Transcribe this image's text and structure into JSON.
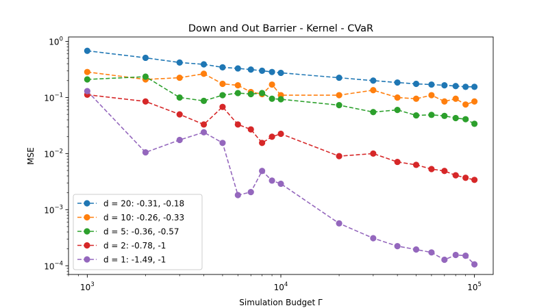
{
  "chart_data": {
    "type": "line",
    "title": "Down and Out Barrier - Kernel - CVaR",
    "xlabel": "Simulation Budget Γ",
    "ylabel": "MSE",
    "xscale": "log",
    "yscale": "log",
    "xlim": [
      800,
      125000
    ],
    "ylim": [
      7e-05,
      1.2
    ],
    "grid": false,
    "legend_position": "lower-left",
    "x_ticks": [
      {
        "value": 1000,
        "base": "10",
        "exp": "3"
      },
      {
        "value": 10000,
        "base": "10",
        "exp": "4"
      },
      {
        "value": 100000,
        "base": "10",
        "exp": "5"
      }
    ],
    "y_ticks": [
      {
        "value": 1,
        "base": "10",
        "exp": "0"
      },
      {
        "value": 0.1,
        "base": "10",
        "exp": "−1"
      },
      {
        "value": 0.01,
        "base": "10",
        "exp": "−2"
      },
      {
        "value": 0.001,
        "base": "10",
        "exp": "−3"
      },
      {
        "value": 0.0001,
        "base": "10",
        "exp": "−4"
      }
    ],
    "x": [
      1000,
      2000,
      3000,
      4000,
      5000,
      6000,
      7000,
      8000,
      9000,
      10000,
      20000,
      30000,
      40000,
      50000,
      60000,
      70000,
      80000,
      90000,
      100000
    ],
    "series": [
      {
        "name": "d = 20: -0.31, -0.18",
        "color": "#1f77b4",
        "values": [
          0.68,
          0.51,
          0.42,
          0.39,
          0.345,
          0.33,
          0.315,
          0.3,
          0.285,
          0.275,
          0.225,
          0.2,
          0.185,
          0.175,
          0.17,
          0.165,
          0.16,
          0.155,
          0.155
        ]
      },
      {
        "name": "d = 10: -0.26, -0.33",
        "color": "#ff7f0e",
        "values": [
          0.285,
          0.21,
          0.225,
          0.265,
          0.175,
          0.165,
          0.125,
          0.115,
          0.17,
          0.11,
          0.11,
          0.135,
          0.1,
          0.095,
          0.11,
          0.085,
          0.095,
          0.075,
          0.085
        ]
      },
      {
        "name": "d = 5: -0.36, -0.57",
        "color": "#2ca02c",
        "values": [
          0.21,
          0.235,
          0.1,
          0.087,
          0.11,
          0.12,
          0.115,
          0.12,
          0.095,
          0.093,
          0.073,
          0.055,
          0.06,
          0.048,
          0.049,
          0.047,
          0.043,
          0.041,
          0.034
        ]
      },
      {
        "name": "d = 2: -0.78, -1",
        "color": "#d62728",
        "values": [
          0.112,
          0.085,
          0.05,
          0.033,
          0.068,
          0.033,
          0.027,
          0.0155,
          0.02,
          0.0225,
          0.009,
          0.01,
          0.0071,
          0.0063,
          0.0053,
          0.0049,
          0.0041,
          0.0037,
          0.0034
        ]
      },
      {
        "name": "d = 1: -1.49, -1",
        "color": "#9467bd",
        "values": [
          0.13,
          0.0105,
          0.0175,
          0.024,
          0.0155,
          0.00182,
          0.00206,
          0.0049,
          0.0033,
          0.0029,
          0.00057,
          0.00031,
          0.000224,
          0.000195,
          0.000173,
          0.000128,
          0.000156,
          0.000151,
          0.000106
        ]
      }
    ]
  }
}
